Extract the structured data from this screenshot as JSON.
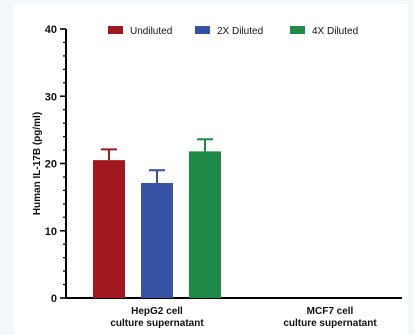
{
  "chart_data": {
    "type": "bar",
    "title": "",
    "xlabel": "",
    "ylabel": "Human IL-17B (pg/ml)",
    "ylim": [
      0,
      40
    ],
    "yticks": [
      0,
      10,
      20,
      30,
      40
    ],
    "categories": [
      [
        "HepG2 cell",
        "culture supernatant"
      ],
      [
        "MCF7 cell",
        "culture supernatant"
      ]
    ],
    "series": [
      {
        "name": "Undiluted",
        "color": "#a1191e",
        "values": [
          20.5,
          null
        ],
        "errors": [
          1.6,
          null
        ]
      },
      {
        "name": "2X Diluted",
        "color": "#3652a4",
        "values": [
          17.1,
          null
        ],
        "errors": [
          1.9,
          null
        ]
      },
      {
        "name": "4X Diluted",
        "color": "#1f8a47",
        "values": [
          21.8,
          null
        ],
        "errors": [
          1.8,
          null
        ]
      }
    ],
    "legend_position": "top",
    "grid": false
  }
}
